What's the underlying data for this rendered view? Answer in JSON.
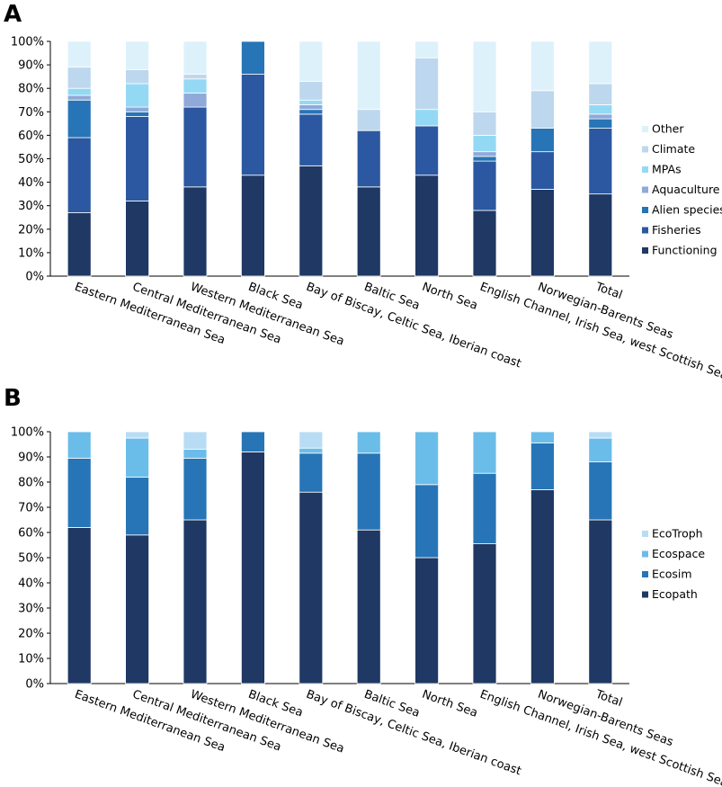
{
  "panels": [
    {
      "letter": "A",
      "chart_data": {
        "type": "bar",
        "stacked": true,
        "title": "",
        "xlabel": "",
        "ylabel": "",
        "ylim": [
          0,
          100
        ],
        "y_ticks": [
          "0%",
          "10%",
          "20%",
          "30%",
          "40%",
          "50%",
          "60%",
          "70%",
          "80%",
          "90%",
          "100%"
        ],
        "categories": [
          "Eastern Mediterranean Sea",
          "Central Mediterranean Sea",
          "Western Mediterranean Sea",
          "Black Sea",
          "Bay of Biscay, Celtic Sea, Iberian coast",
          "Baltic Sea",
          "North Sea",
          "English Channel, Irish Sea, west Scottish Sea",
          "Norwegian-Barents Seas",
          "Total"
        ],
        "series": [
          {
            "name": "Functioning",
            "color": "#1f3864",
            "values": [
              27,
              32,
              38,
              43,
              47,
              38,
              43,
              28,
              37,
              35
            ]
          },
          {
            "name": "Fisheries",
            "color": "#2b58a0",
            "values": [
              32,
              36,
              34,
              43,
              22,
              24,
              21,
              21,
              16,
              28
            ]
          },
          {
            "name": "Alien species",
            "color": "#2775b6",
            "values": [
              16,
              2,
              0,
              14,
              2,
              0,
              0,
              2,
              10,
              4
            ]
          },
          {
            "name": "Aquaculture",
            "color": "#8fa9d9",
            "values": [
              2,
              2,
              6,
              0,
              2,
              0,
              0,
              2,
              0,
              2
            ]
          },
          {
            "name": "MPAs",
            "color": "#94d9f4",
            "values": [
              3,
              10,
              6,
              0,
              2,
              0,
              7,
              7,
              0,
              4
            ]
          },
          {
            "name": "Climate",
            "color": "#bdd7ee",
            "values": [
              9,
              6,
              2,
              0,
              8,
              9,
              22,
              10,
              16,
              9
            ]
          },
          {
            "name": "Other",
            "color": "#ddf1fb",
            "values": [
              11,
              12,
              14,
              0,
              17,
              29,
              7,
              30,
              21,
              18
            ]
          }
        ],
        "legend_position": "right",
        "legend_order": [
          "Other",
          "Climate",
          "MPAs",
          "Aquaculture",
          "Alien species",
          "Fisheries",
          "Functioning"
        ]
      }
    },
    {
      "letter": "B",
      "chart_data": {
        "type": "bar",
        "stacked": true,
        "title": "",
        "xlabel": "",
        "ylabel": "",
        "ylim": [
          0,
          100
        ],
        "y_ticks": [
          "0%",
          "10%",
          "20%",
          "30%",
          "40%",
          "50%",
          "60%",
          "70%",
          "80%",
          "90%",
          "100%"
        ],
        "categories": [
          "Eastern Mediterranean Sea",
          "Central Mediterranean Sea",
          "Western Mediterranean Sea",
          "Black Sea",
          "Bay of Biscay, Celtic Sea, Iberian coast",
          "Baltic Sea",
          "North Sea",
          "English Channel, Irish Sea, west Scottish Sea",
          "Norwegian-Barents Seas",
          "Total"
        ],
        "series": [
          {
            "name": "Ecopath",
            "color": "#1f3864",
            "values": [
              62,
              59,
              65,
              92,
              76,
              61,
              50,
              55.5,
              77,
              65
            ]
          },
          {
            "name": "Ecosim",
            "color": "#2775b6",
            "values": [
              27.5,
              23,
              24.5,
              8,
              15.5,
              30.5,
              29,
              28,
              18.5,
              23
            ]
          },
          {
            "name": "Ecospace",
            "color": "#6bbde9",
            "values": [
              10.5,
              15.5,
              3.5,
              0,
              2,
              8.5,
              21,
              16.5,
              4.5,
              9.5
            ]
          },
          {
            "name": "EcoTroph",
            "color": "#b9dcf5",
            "values": [
              0,
              2.5,
              7,
              0,
              6.5,
              0,
              0,
              0,
              0,
              2.5
            ]
          }
        ],
        "legend_position": "right",
        "legend_order": [
          "EcoTroph",
          "Ecospace",
          "Ecosim",
          "Ecopath"
        ]
      }
    }
  ]
}
